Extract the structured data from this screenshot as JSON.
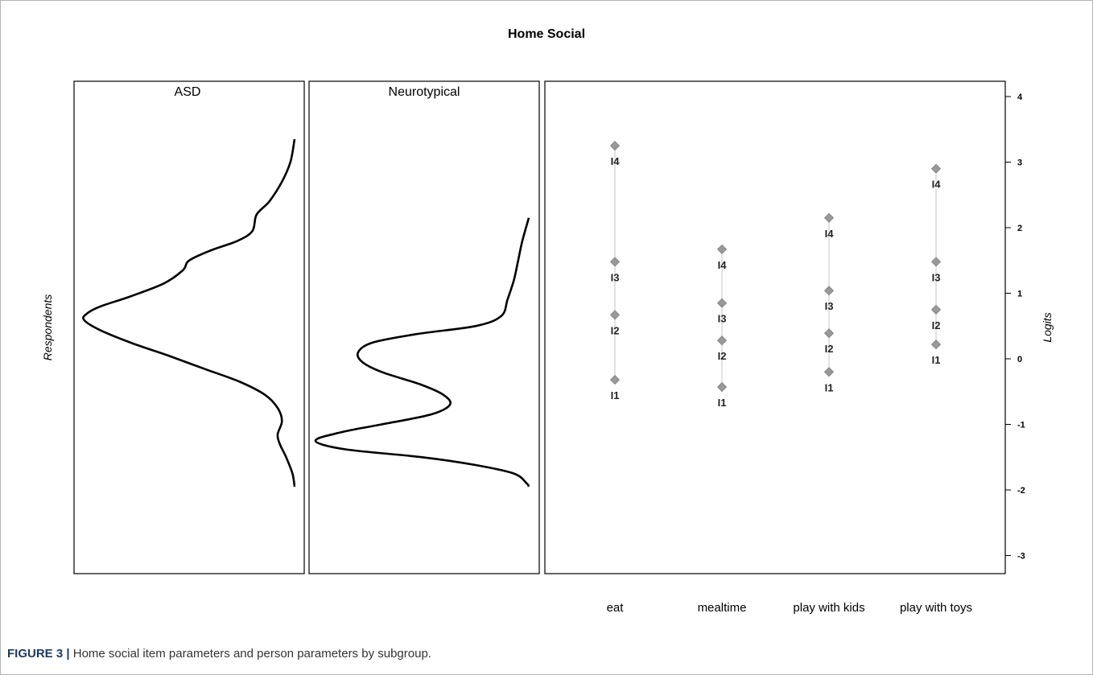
{
  "chart_data": {
    "type": "scatter",
    "title": "Home Social",
    "subplots": [
      {
        "name": "ASD"
      },
      {
        "name": "Neurotypical"
      }
    ],
    "person_axis_label": "Respondents",
    "ylabel": "Logits",
    "ylim": [
      -3.2,
      4.3
    ],
    "y_ticks": [
      "4",
      "3",
      "2",
      "1",
      "0",
      "-1",
      "-2",
      "-3"
    ],
    "densities": [
      {
        "name": "ASD",
        "points": [
          [
            3.35,
            0.0
          ],
          [
            3.0,
            0.02
          ],
          [
            2.7,
            0.06
          ],
          [
            2.4,
            0.12
          ],
          [
            2.2,
            0.18
          ],
          [
            1.95,
            0.2
          ],
          [
            1.8,
            0.27
          ],
          [
            1.65,
            0.4
          ],
          [
            1.5,
            0.5
          ],
          [
            1.35,
            0.53
          ],
          [
            1.15,
            0.62
          ],
          [
            0.95,
            0.78
          ],
          [
            0.8,
            0.92
          ],
          [
            0.7,
            0.98
          ],
          [
            0.6,
            1.0
          ],
          [
            0.45,
            0.93
          ],
          [
            0.25,
            0.78
          ],
          [
            0.05,
            0.6
          ],
          [
            -0.15,
            0.43
          ],
          [
            -0.35,
            0.26
          ],
          [
            -0.55,
            0.14
          ],
          [
            -0.75,
            0.08
          ],
          [
            -0.95,
            0.06
          ],
          [
            -1.15,
            0.08
          ],
          [
            -1.3,
            0.07
          ],
          [
            -1.5,
            0.04
          ],
          [
            -1.75,
            0.01
          ],
          [
            -1.95,
            0.0
          ]
        ]
      },
      {
        "name": "Neurotypical",
        "points": [
          [
            2.15,
            0.0
          ],
          [
            1.8,
            0.03
          ],
          [
            1.5,
            0.05
          ],
          [
            1.2,
            0.07
          ],
          [
            0.9,
            0.1
          ],
          [
            0.65,
            0.13
          ],
          [
            0.5,
            0.25
          ],
          [
            0.38,
            0.52
          ],
          [
            0.25,
            0.73
          ],
          [
            0.1,
            0.8
          ],
          [
            -0.05,
            0.78
          ],
          [
            -0.2,
            0.69
          ],
          [
            -0.4,
            0.5
          ],
          [
            -0.55,
            0.4
          ],
          [
            -0.7,
            0.37
          ],
          [
            -0.85,
            0.46
          ],
          [
            -1.0,
            0.69
          ],
          [
            -1.12,
            0.88
          ],
          [
            -1.25,
            1.0
          ],
          [
            -1.38,
            0.86
          ],
          [
            -1.5,
            0.5
          ],
          [
            -1.62,
            0.25
          ],
          [
            -1.75,
            0.07
          ],
          [
            -1.9,
            0.01
          ],
          [
            -1.95,
            0.0
          ]
        ]
      }
    ],
    "categories": [
      "eat",
      "mealtime",
      "play with kids",
      "play with toys"
    ],
    "items": [
      {
        "category": "eat",
        "thresholds": [
          {
            "label": "I1",
            "y": -0.32
          },
          {
            "label": "I2",
            "y": 0.67
          },
          {
            "label": "I3",
            "y": 1.48
          },
          {
            "label": "I4",
            "y": 3.25
          }
        ]
      },
      {
        "category": "mealtime",
        "thresholds": [
          {
            "label": "I1",
            "y": -0.43
          },
          {
            "label": "I2",
            "y": 0.28
          },
          {
            "label": "I3",
            "y": 0.85
          },
          {
            "label": "I4",
            "y": 1.67
          }
        ]
      },
      {
        "category": "play with kids",
        "thresholds": [
          {
            "label": "I1",
            "y": -0.2
          },
          {
            "label": "I2",
            "y": 0.39
          },
          {
            "label": "I3",
            "y": 1.04
          },
          {
            "label": "I4",
            "y": 2.15
          }
        ]
      },
      {
        "category": "play with toys",
        "thresholds": [
          {
            "label": "I1",
            "y": 0.22
          },
          {
            "label": "I2",
            "y": 0.75
          },
          {
            "label": "I3",
            "y": 1.48
          },
          {
            "label": "I4",
            "y": 2.9
          }
        ]
      }
    ],
    "colors": {
      "marker": "#999999",
      "marker_stroke": "#7f7f7f",
      "range_line": "#d9d9d9",
      "density_line": "#000000"
    }
  },
  "caption": {
    "label": "FIGURE 3",
    "separator": "|",
    "text": "Home social item parameters and person parameters by subgroup."
  }
}
